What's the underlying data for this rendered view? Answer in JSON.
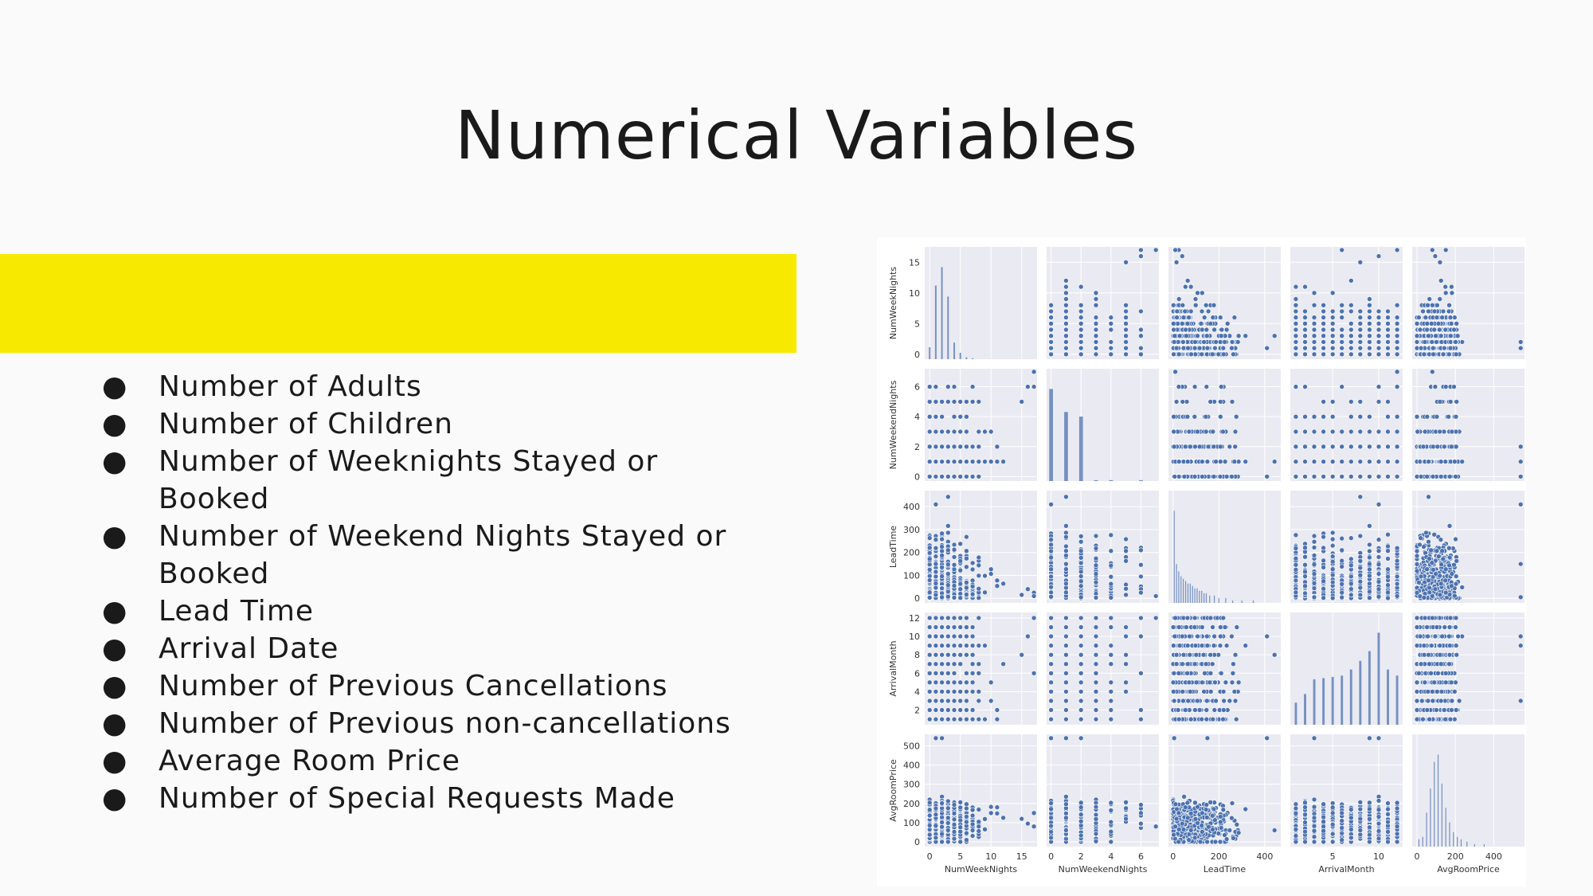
{
  "slide": {
    "title": "Numerical Variables",
    "accent_color": "#f7ea00",
    "bullet_char": "●",
    "items": [
      "Number of Adults",
      "Number of Children",
      "Number of Weeknights Stayed or Booked",
      "Number of Weekend Nights Stayed or Booked",
      "Lead Time",
      "Arrival Date",
      "Number of Previous Cancellations",
      "Number of Previous non-cancellations",
      "Average Room Price",
      "Number of Special Requests Made"
    ]
  },
  "chart_data": {
    "type": "scatter",
    "subtype": "pairplot",
    "diagonal": "histogram",
    "marker_color": "#4c72b0",
    "panel_background": "#eaeaf2",
    "grid": true,
    "variables": [
      {
        "name": "NumWeekNights",
        "range": [
          -0.8,
          17.5
        ],
        "ticks": [
          0,
          5,
          10,
          15
        ]
      },
      {
        "name": "NumWeekendNights",
        "range": [
          -0.3,
          7.2
        ],
        "ticks": [
          0,
          2,
          4,
          6
        ]
      },
      {
        "name": "LeadTime",
        "range": [
          -20,
          470
        ],
        "ticks": [
          0,
          100,
          200,
          300,
          400
        ],
        "xticks": [
          0,
          200,
          400
        ]
      },
      {
        "name": "ArrivalMonth",
        "range": [
          0.4,
          12.6
        ],
        "ticks": [
          2,
          4,
          6,
          8,
          10,
          12
        ],
        "xticks": [
          5,
          10
        ]
      },
      {
        "name": "AvgRoomPrice",
        "range": [
          -25,
          560
        ],
        "ticks": [
          0,
          100,
          200,
          300,
          400,
          500
        ],
        "xticks": [
          0,
          200,
          400
        ]
      }
    ],
    "histograms": {
      "NumWeekNights": {
        "bins": [
          0,
          1,
          2,
          3,
          4,
          5,
          6,
          7
        ],
        "counts": [
          13,
          80,
          100,
          68,
          18,
          7,
          2,
          1
        ]
      },
      "NumWeekendNights": {
        "bins": [
          0,
          1,
          2,
          3,
          4,
          5,
          6
        ],
        "counts": [
          100,
          75,
          70,
          1,
          1,
          0,
          1
        ]
      },
      "LeadTime": {
        "bins": [
          5,
          15,
          25,
          35,
          45,
          55,
          65,
          75,
          85,
          95,
          105,
          115,
          125,
          135,
          145,
          160,
          180,
          200,
          230,
          260,
          300,
          350
        ],
        "counts": [
          38,
          16,
          13,
          11,
          10,
          9,
          8,
          8,
          7,
          6,
          6,
          5,
          5,
          4,
          4,
          3,
          3,
          2,
          2,
          1,
          1,
          1
        ]
      },
      "ArrivalMonth": {
        "bins": [
          1,
          2,
          3,
          4,
          5,
          6,
          7,
          8,
          9,
          10,
          11,
          12
        ],
        "counts": [
          18,
          25,
          37,
          38,
          39,
          40,
          45,
          52,
          60,
          75,
          45,
          40
        ]
      },
      "AvgRoomPrice": {
        "bins": [
          10,
          30,
          50,
          70,
          90,
          110,
          130,
          150,
          170,
          190,
          210,
          230,
          260,
          300,
          350
        ],
        "counts": [
          3,
          4,
          14,
          24,
          35,
          38,
          26,
          16,
          10,
          6,
          4,
          3,
          2,
          1,
          1
        ]
      }
    }
  }
}
